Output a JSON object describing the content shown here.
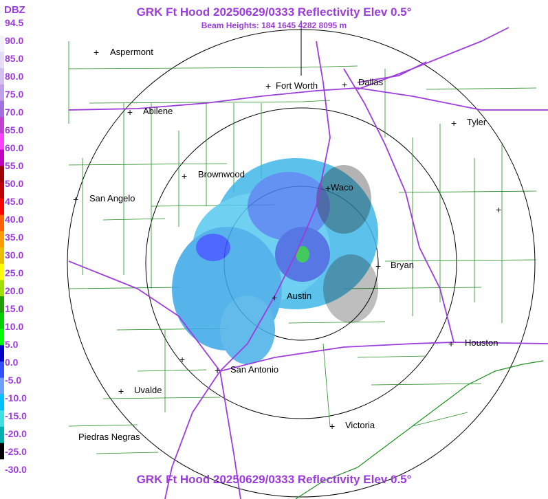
{
  "header": {
    "title": "GRK Ft Hood 20250629/0333 Reflectivity Elev 0.5°",
    "subtitle": "Beam Heights: 184 1645 4282 8095 m",
    "footer_title": "GRK Ft Hood 20250629/0333 Reflectivity Elev 0.5°"
  },
  "legend": {
    "unit": "DBZ",
    "ticks": [
      "94.5",
      "90.0",
      "85.0",
      "80.0",
      "75.0",
      "70.0",
      "65.0",
      "60.0",
      "55.0",
      "50.0",
      "45.0",
      "40.0",
      "35.0",
      "30.0",
      "25.0",
      "20.0",
      "15.0",
      "10.0",
      "5.0",
      "0.0",
      "-5.0",
      "-10.0",
      "-15.0",
      "-20.0",
      "-25.0",
      "-30.0"
    ],
    "colors": [
      "#ffffff",
      "#f4f0ff",
      "#e6dcf8",
      "#d4c0f0",
      "#c0a0e8",
      "#a070e0",
      "#c040d0",
      "#ff40ff",
      "#c000c0",
      "#a00000",
      "#c00000",
      "#ff0000",
      "#ff6000",
      "#ff9c00",
      "#e8c000",
      "#ffff00",
      "#a0e000",
      "#20a000",
      "#00d000",
      "#00ff00",
      "#0000c8",
      "#3050ff",
      "#70a0ff",
      "#00c0ff",
      "#40e0e0",
      "#00b0b0",
      "#000000",
      "#ffffff"
    ]
  },
  "cities": [
    {
      "name": "Aspermont"
    },
    {
      "name": "Fort Worth"
    },
    {
      "name": "Dallas"
    },
    {
      "name": "Abilene"
    },
    {
      "name": "Tyler"
    },
    {
      "name": "Brownwood"
    },
    {
      "name": "Waco"
    },
    {
      "name": "San Angelo"
    },
    {
      "name": "Bryan"
    },
    {
      "name": "Austin"
    },
    {
      "name": "Houston"
    },
    {
      "name": "San Antonio"
    },
    {
      "name": "Uvalde"
    },
    {
      "name": "Victoria"
    },
    {
      "name": "Piedras Negras"
    },
    {
      "name": ""
    }
  ],
  "colors": {
    "title": "#9c3cdc",
    "county_lines": "#1e8c1e",
    "highways": "#9c3cdc",
    "range_rings": "#000000"
  }
}
